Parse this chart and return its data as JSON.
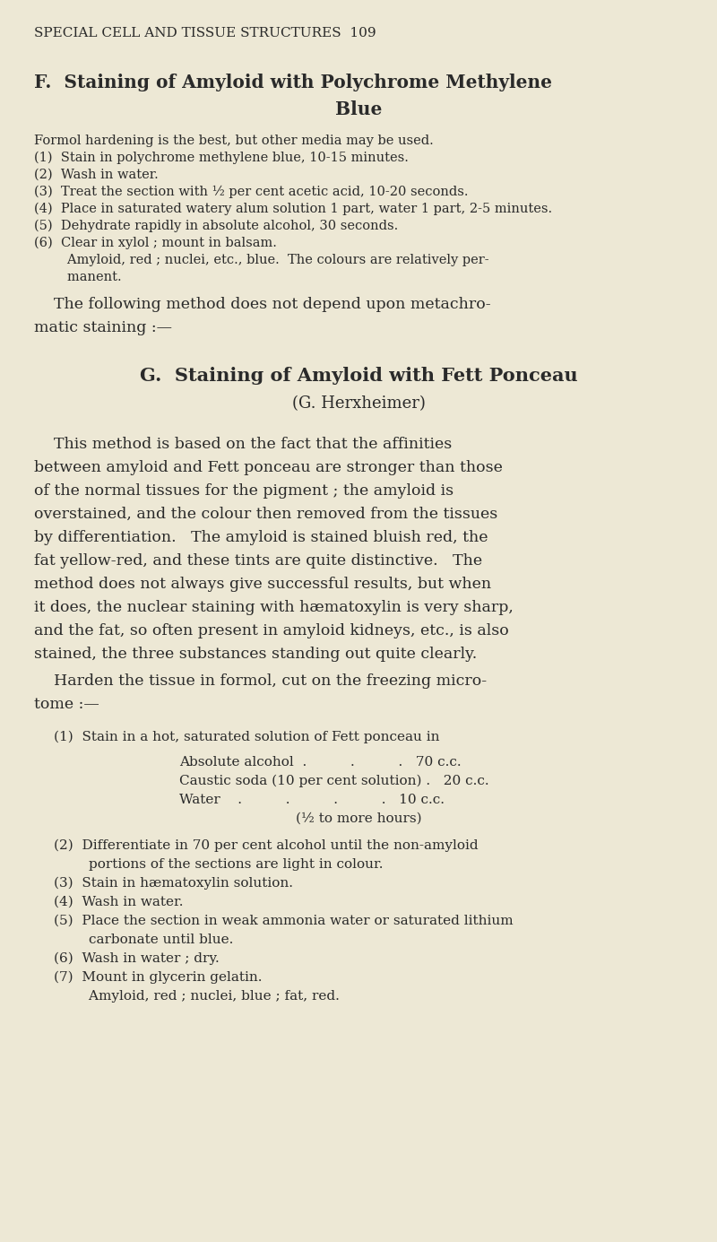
{
  "bg_color": "#ede8d5",
  "text_color": "#2a2a2a",
  "page_header": "SPECIAL CELL AND TISSUE STRUCTURES  109",
  "section_f_title1": "F.  Staining of Amyloid with Polychrome Methylene",
  "section_f_title2": "Blue",
  "section_f_body": [
    "Formol hardening is the best, but other media may be used.",
    "(1)  Stain in polychrome methylene blue, 10-15 minutes.",
    "(2)  Wash in water.",
    "(3)  Treat the section with ½ per cent acetic acid, 10-20 seconds.",
    "(4)  Place in saturated watery alum solution 1 part, water 1 part, 2-5 minutes.",
    "(5)  Dehydrate rapidly in absolute alcohol, 30 seconds.",
    "(6)  Clear in xylol ; mount in balsam.",
    "        Amyloid, red ; nuclei, etc., blue.  The colours are relatively per-",
    "        manent."
  ],
  "transition_text1": "    The following method does not depend upon metachro-",
  "transition_text2": "matic staining :—",
  "section_g_title1": "G.  Staining of Amyloid with Fett Ponceau",
  "section_g_title2": "(G. Herxheimer)",
  "section_g_para1": [
    "    This method is based on the fact that the affinities",
    "between amyloid and Fett ponceau are stronger than those",
    "of the normal tissues for the pigment ; the amyloid is",
    "overstained, and the colour then removed from the tissues",
    "by differentiation.   The amyloid is stained bluish red, the",
    "fat yellow-red, and these tints are quite distinctive.   The",
    "method does not always give successful results, but when",
    "it does, the nuclear staining with hæmatoxylin is very sharp,",
    "and the fat, so often present in amyloid kidneys, etc., is also",
    "stained, the three substances standing out quite clearly."
  ],
  "harden_text1": "    Harden the tissue in formol, cut on the freezing micro-",
  "harden_text2": "tome :—",
  "step1_intro": "(1)  Stain in a hot, saturated solution of Fett ponceau in",
  "step1_lines": [
    "Absolute alcohol  .          .          .   70 c.c.",
    "Caustic soda (10 per cent solution) .   20 c.c.",
    "Water    .          .          .          .   10 c.c."
  ],
  "step1_time": "(½ to more hours)",
  "section_g_steps": [
    "(2)  Differentiate in 70 per cent alcohol until the non-amyloid",
    "        portions of the sections are light in colour.",
    "(3)  Stain in hæmatoxylin solution.",
    "(4)  Wash in water.",
    "(5)  Place the section in weak ammonia water or saturated lithium",
    "        carbonate until blue.",
    "(6)  Wash in water ; dry.",
    "(7)  Mount in glycerin gelatin.",
    "        Amyloid, red ; nuclei, blue ; fat, red."
  ]
}
